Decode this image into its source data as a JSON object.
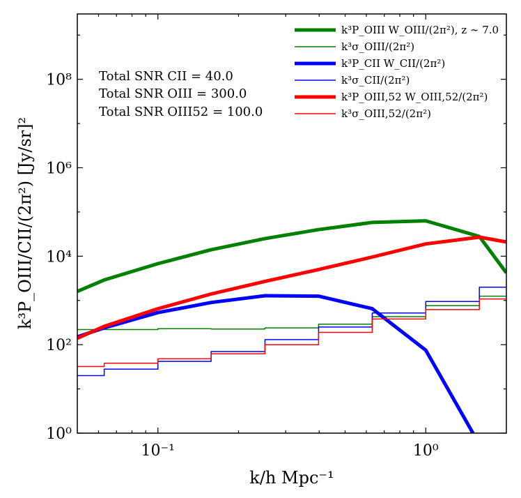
{
  "chart_data": {
    "type": "line",
    "xscale": "log",
    "yscale": "log",
    "xlim": [
      0.05,
      2.0
    ],
    "ylim": [
      1,
      3000000000.0
    ],
    "xlabel": "k/h Mpc⁻¹",
    "ylabel": "k³P_OIII/CII/(2π²) [Jy/sr]²",
    "grid": false,
    "legend_position": "top-right",
    "xticks": [
      {
        "value": 0.1,
        "label": "10⁻¹"
      },
      {
        "value": 1.0,
        "label": "10⁰"
      }
    ],
    "yticks": [
      {
        "value": 1,
        "label": "10⁰"
      },
      {
        "value": 100,
        "label": "10²"
      },
      {
        "value": 10000,
        "label": "10⁴"
      },
      {
        "value": 1000000,
        "label": "10⁶"
      },
      {
        "value": 100000000,
        "label": "10⁸"
      }
    ],
    "annotations": [
      "Total SNR CII = 40.0",
      "Total SNR OIII = 300.0",
      "Total SNR OIII52 = 100.0"
    ],
    "series": [
      {
        "name": "k³P_OIII W_OIII/(2π²), z ∼ 7.0",
        "style": "line",
        "color": "#008000",
        "width": 5,
        "x": [
          0.05,
          0.063,
          0.1,
          0.158,
          0.251,
          0.398,
          0.631,
          1.0,
          1.585,
          2.0
        ],
        "y": [
          1600,
          2900,
          6800,
          14000,
          25000,
          40000,
          58000,
          63000,
          28000,
          4200
        ]
      },
      {
        "name": "k³σ_OIII/(2π²)",
        "style": "step",
        "color": "#008000",
        "width": 1.5,
        "edges": [
          0.05,
          0.063,
          0.1,
          0.158,
          0.251,
          0.398,
          0.631,
          1.0,
          1.585,
          2.0
        ],
        "y": [
          220,
          220,
          230,
          225,
          240,
          290,
          430,
          760,
          1250
        ]
      },
      {
        "name": "k³P_CII W_CII/(2π²)",
        "style": "line",
        "color": "#0000ff",
        "width": 5,
        "x": [
          0.05,
          0.063,
          0.1,
          0.158,
          0.251,
          0.398,
          0.631,
          1.0,
          1.5
        ],
        "y": [
          150,
          240,
          530,
          900,
          1280,
          1250,
          650,
          75,
          1
        ]
      },
      {
        "name": "k³σ_CII/(2π²)",
        "style": "step",
        "color": "#0000ff",
        "width": 1.5,
        "edges": [
          0.05,
          0.063,
          0.1,
          0.158,
          0.251,
          0.398,
          0.631,
          1.0,
          1.585,
          2.0
        ],
        "y": [
          20,
          28,
          42,
          70,
          130,
          250,
          520,
          950,
          2000
        ]
      },
      {
        "name": "k³P_OIII,52 W_OIII,52/(2π²)",
        "style": "line",
        "color": "#ff0000",
        "width": 5,
        "x": [
          0.05,
          0.063,
          0.1,
          0.158,
          0.251,
          0.398,
          0.631,
          1.0,
          1.585,
          2.0
        ],
        "y": [
          140,
          260,
          650,
          1400,
          2700,
          5000,
          9600,
          19000,
          27000,
          21000
        ]
      },
      {
        "name": "k³σ_OIII,52/(2π²)",
        "style": "step",
        "color": "#ff0000",
        "width": 1.5,
        "edges": [
          0.05,
          0.063,
          0.1,
          0.158,
          0.251,
          0.398,
          0.631,
          1.0,
          1.585,
          2.0
        ],
        "y": [
          32,
          38,
          48,
          62,
          100,
          190,
          380,
          620,
          1080
        ]
      }
    ]
  }
}
